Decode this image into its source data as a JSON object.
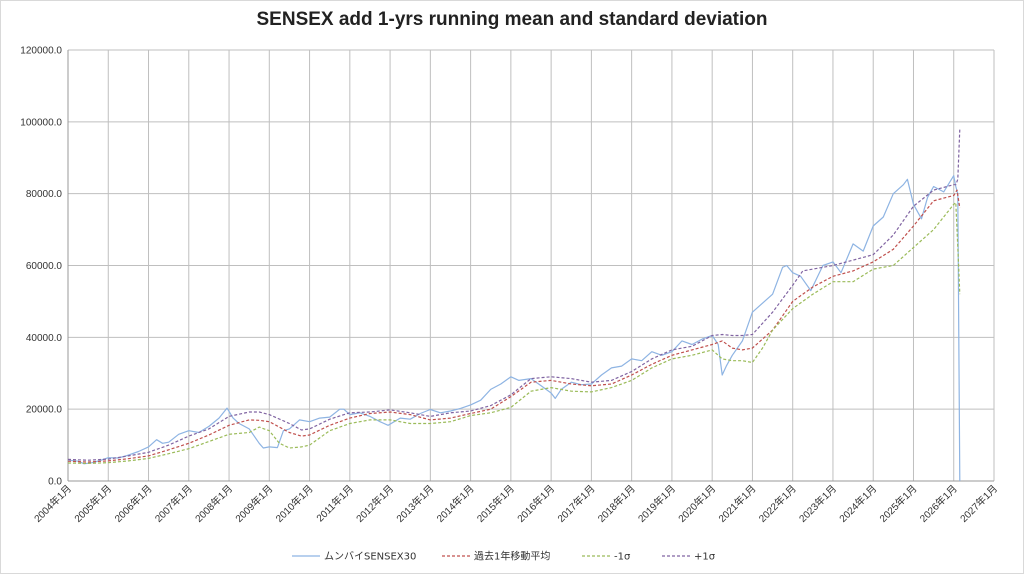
{
  "chart_data": {
    "type": "line",
    "title": "SENSEX add 1-yrs running mean and standard deviation",
    "y_ticks": [
      "0.0",
      "20000.0",
      "40000.0",
      "60000.0",
      "80000.0",
      "100000.0",
      "120000.0"
    ],
    "ylim": [
      0,
      120000
    ],
    "x_ticks": [
      "2004年1月",
      "2005年1月",
      "2006年1月",
      "2007年1月",
      "2008年1月",
      "2009年1月",
      "2010年1月",
      "2011年1月",
      "2012年1月",
      "2013年1月",
      "2014年1月",
      "2015年1月",
      "2016年1月",
      "2017年1月",
      "2018年1月",
      "2019年1月",
      "2020年1月",
      "2021年1月",
      "2022年1月",
      "2023年1月",
      "2024年1月",
      "2025年1月",
      "2026年1月",
      "2027年1月"
    ],
    "xlim": [
      2004.0,
      2027.0
    ],
    "grid": true,
    "legend_position": "bottom",
    "colors": {
      "sensex": "#8eb4e3",
      "mean": "#c0504d",
      "minus": "#9bbb59",
      "plus": "#8064a2"
    },
    "series": [
      {
        "name": "ムンバイSENSEX30",
        "style": "solid",
        "x": [
          2004.0,
          2004.25,
          2004.4,
          2004.6,
          2004.8,
          2005.0,
          2005.25,
          2005.5,
          2005.75,
          2006.0,
          2006.2,
          2006.35,
          2006.5,
          2006.75,
          2007.0,
          2007.25,
          2007.5,
          2007.75,
          2007.95,
          2008.1,
          2008.25,
          2008.5,
          2008.75,
          2008.85,
          2009.0,
          2009.2,
          2009.35,
          2009.5,
          2009.75,
          2010.0,
          2010.25,
          2010.5,
          2010.75,
          2010.85,
          2011.0,
          2011.25,
          2011.5,
          2011.75,
          2011.95,
          2012.25,
          2012.5,
          2012.75,
          2013.0,
          2013.25,
          2013.5,
          2013.75,
          2014.0,
          2014.25,
          2014.5,
          2014.75,
          2015.0,
          2015.2,
          2015.5,
          2015.75,
          2016.0,
          2016.1,
          2016.25,
          2016.5,
          2016.75,
          2017.0,
          2017.25,
          2017.5,
          2017.75,
          2018.0,
          2018.25,
          2018.5,
          2018.75,
          2019.0,
          2019.25,
          2019.5,
          2019.75,
          2020.0,
          2020.15,
          2020.25,
          2020.35,
          2020.5,
          2020.75,
          2021.0,
          2021.25,
          2021.5,
          2021.75,
          2021.85,
          2022.0,
          2022.2,
          2022.45,
          2022.75,
          2023.0,
          2023.2,
          2023.5,
          2023.75,
          2024.0,
          2024.25,
          2024.5,
          2024.75,
          2024.85,
          2025.0,
          2025.2,
          2025.35,
          2025.5,
          2025.75,
          2026.0,
          2026.05,
          2026.1,
          2026.15
        ],
        "y": [
          5800,
          5500,
          4800,
          5100,
          5700,
          6500,
          6400,
          7200,
          8200,
          9500,
          11500,
          10500,
          10800,
          13000,
          14000,
          13500,
          15200,
          17500,
          20300,
          17500,
          16000,
          14500,
          10500,
          9200,
          9500,
          9300,
          14000,
          14500,
          17000,
          16500,
          17500,
          17800,
          20000,
          20000,
          18500,
          19000,
          18000,
          16500,
          15500,
          17500,
          17200,
          18800,
          19900,
          19000,
          19500,
          20200,
          21200,
          22500,
          25500,
          27000,
          29000,
          28000,
          28500,
          26500,
          24500,
          23000,
          25500,
          27500,
          26800,
          27000,
          29500,
          31500,
          32000,
          34000,
          33500,
          36000,
          35000,
          36000,
          39000,
          38000,
          39500,
          40500,
          38000,
          29500,
          32000,
          35000,
          39000,
          47000,
          49500,
          52000,
          59500,
          60000,
          58000,
          57000,
          53000,
          60000,
          61000,
          58000,
          66000,
          64000,
          71000,
          73500,
          80000,
          82500,
          84000,
          77000,
          73000,
          79000,
          82000,
          80500,
          85000,
          82000,
          80000,
          0
        ]
      },
      {
        "name": "過去1年移動平均",
        "style": "dashed",
        "x": [
          2004.0,
          2004.5,
          2005.0,
          2005.5,
          2006.0,
          2006.5,
          2007.0,
          2007.5,
          2008.0,
          2008.5,
          2008.75,
          2009.0,
          2009.5,
          2009.8,
          2010.0,
          2010.5,
          2011.0,
          2011.5,
          2012.0,
          2012.5,
          2013.0,
          2013.5,
          2014.0,
          2014.5,
          2015.0,
          2015.5,
          2016.0,
          2016.5,
          2017.0,
          2017.5,
          2018.0,
          2018.5,
          2019.0,
          2019.5,
          2020.0,
          2020.25,
          2020.5,
          2020.75,
          2021.0,
          2021.5,
          2022.0,
          2022.5,
          2023.0,
          2023.5,
          2024.0,
          2024.5,
          2025.0,
          2025.5,
          2026.0,
          2026.08,
          2026.15
        ],
        "y": [
          5500,
          5300,
          5600,
          6200,
          7000,
          8700,
          10500,
          12800,
          15500,
          17000,
          16900,
          16500,
          13500,
          12500,
          12800,
          15500,
          17500,
          18800,
          19200,
          18500,
          17000,
          17500,
          18800,
          20000,
          23500,
          27500,
          28000,
          27000,
          26500,
          27000,
          29500,
          32500,
          35000,
          36500,
          38000,
          39000,
          37000,
          36500,
          37000,
          42000,
          50000,
          54000,
          57000,
          58500,
          61000,
          64500,
          71000,
          78000,
          79500,
          81000,
          76000
        ]
      },
      {
        "name": "-1σ",
        "style": "dashed",
        "x": [
          2004.0,
          2004.5,
          2005.0,
          2005.5,
          2006.0,
          2006.5,
          2007.0,
          2007.5,
          2008.0,
          2008.5,
          2008.75,
          2009.0,
          2009.25,
          2009.5,
          2009.8,
          2010.0,
          2010.5,
          2011.0,
          2011.5,
          2012.0,
          2012.5,
          2013.0,
          2013.5,
          2014.0,
          2014.5,
          2015.0,
          2015.5,
          2016.0,
          2016.5,
          2017.0,
          2017.5,
          2018.0,
          2018.5,
          2019.0,
          2019.5,
          2020.0,
          2020.25,
          2020.5,
          2020.75,
          2021.0,
          2021.25,
          2021.5,
          2022.0,
          2022.5,
          2023.0,
          2023.5,
          2024.0,
          2024.5,
          2025.0,
          2025.5,
          2026.0,
          2026.05,
          2026.12,
          2026.15
        ],
        "y": [
          5000,
          4900,
          5100,
          5600,
          6300,
          7600,
          9000,
          11000,
          13000,
          13500,
          15000,
          14000,
          10500,
          9200,
          9500,
          10000,
          14000,
          16000,
          17000,
          17000,
          16000,
          16000,
          16500,
          18200,
          19000,
          20500,
          25000,
          26000,
          25000,
          24800,
          26000,
          28000,
          31500,
          34000,
          35000,
          36500,
          34000,
          33500,
          33500,
          33000,
          37000,
          42000,
          48000,
          52000,
          55500,
          55500,
          59000,
          60000,
          65000,
          70000,
          77000,
          77500,
          60000,
          52000
        ]
      },
      {
        "name": "+1σ",
        "style": "dashed",
        "x": [
          2004.0,
          2004.5,
          2005.0,
          2005.5,
          2006.0,
          2006.5,
          2007.0,
          2007.5,
          2008.0,
          2008.5,
          2008.75,
          2009.0,
          2009.5,
          2009.8,
          2010.0,
          2010.5,
          2011.0,
          2011.5,
          2012.0,
          2012.5,
          2013.0,
          2013.5,
          2014.0,
          2014.5,
          2015.0,
          2015.5,
          2016.0,
          2016.5,
          2017.0,
          2017.5,
          2018.0,
          2018.5,
          2019.0,
          2019.5,
          2020.0,
          2020.25,
          2020.5,
          2020.75,
          2021.0,
          2021.5,
          2022.0,
          2022.25,
          2022.5,
          2023.0,
          2023.5,
          2024.0,
          2024.5,
          2025.0,
          2025.5,
          2026.0,
          2026.05,
          2026.1,
          2026.15
        ],
        "y": [
          6000,
          5800,
          6100,
          7000,
          8000,
          10000,
          12500,
          14500,
          18000,
          19200,
          19200,
          18500,
          16000,
          14200,
          14500,
          17200,
          19000,
          19200,
          19800,
          19000,
          18000,
          19000,
          19500,
          21000,
          24000,
          28500,
          29000,
          28500,
          27500,
          28000,
          30500,
          34000,
          36500,
          37500,
          40500,
          40800,
          40500,
          40500,
          40800,
          47000,
          54500,
          58500,
          59000,
          60000,
          61500,
          63000,
          68500,
          76500,
          81000,
          82500,
          82500,
          84000,
          98000
        ]
      }
    ]
  }
}
